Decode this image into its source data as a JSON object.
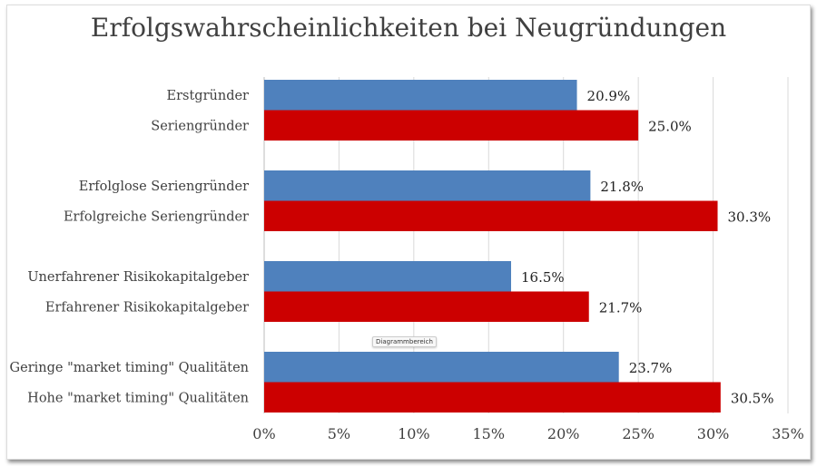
{
  "chart_data": {
    "type": "bar",
    "orientation": "horizontal",
    "title": "Erfolgswahrscheinlichkeiten bei Neugründungen",
    "xlabel": "",
    "ylabel": "",
    "xlim": [
      0,
      35
    ],
    "x_ticks": [
      "0%",
      "5%",
      "10%",
      "15%",
      "20%",
      "25%",
      "30%",
      "35%"
    ],
    "grid": "vertical",
    "legend": "none",
    "bars": [
      {
        "label": "Erstgründer",
        "value": 20.9,
        "value_label": "20.9%",
        "color": "#4f81bd"
      },
      {
        "label": "Seriengründer",
        "value": 25.0,
        "value_label": "25.0%",
        "color": "#cc0000"
      },
      {
        "label": "Erfolglose Seriengründer",
        "value": 21.8,
        "value_label": "21.8%",
        "color": "#4f81bd"
      },
      {
        "label": "Erfolgreiche Seriengründer",
        "value": 30.3,
        "value_label": "30.3%",
        "color": "#cc0000"
      },
      {
        "label": "Unerfahrener Risikokapitalgeber",
        "value": 16.5,
        "value_label": "16.5%",
        "color": "#4f81bd"
      },
      {
        "label": "Erfahrener Risikokapitalgeber",
        "value": 21.7,
        "value_label": "21.7%",
        "color": "#cc0000"
      },
      {
        "label": "Geringe \"market timing\" Qualitäten",
        "value": 23.7,
        "value_label": "23.7%",
        "color": "#4f81bd"
      },
      {
        "label": "Hohe \"market timing\" Qualitäten",
        "value": 30.5,
        "value_label": "30.5%",
        "color": "#cc0000"
      }
    ]
  },
  "tooltip": "Diagrammbereich"
}
